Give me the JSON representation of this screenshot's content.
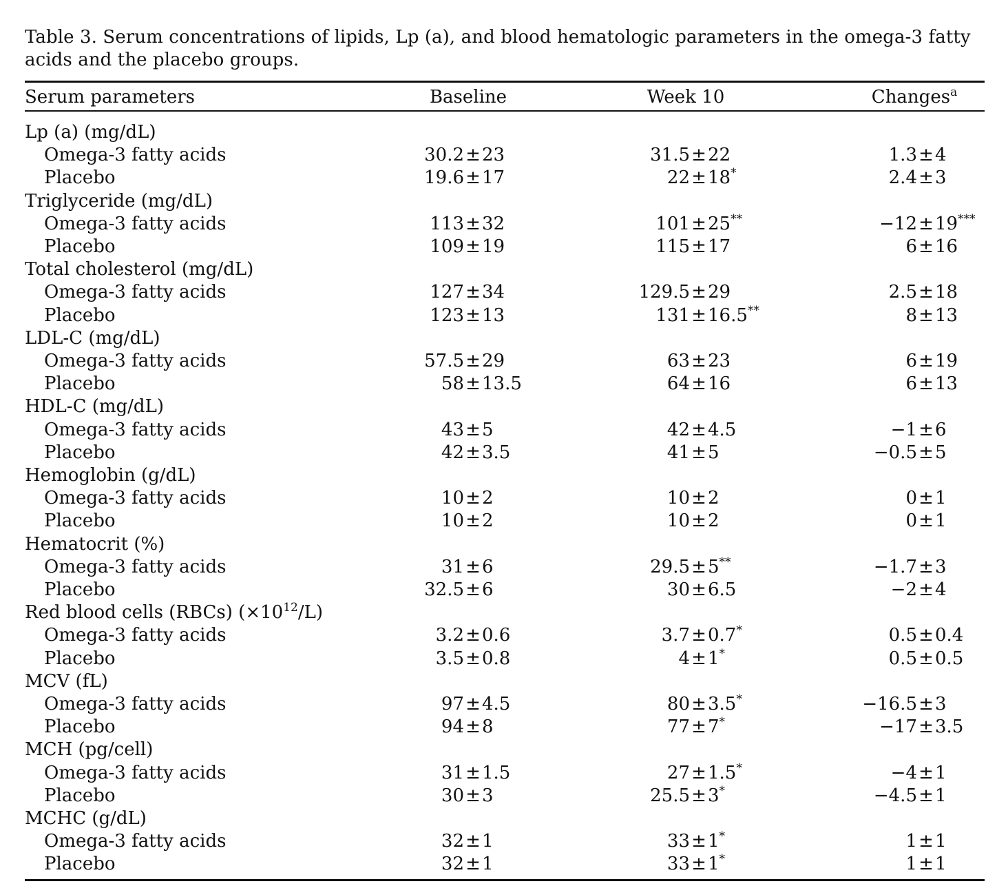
{
  "caption": "Table 3.  Serum concentrations of lipids, Lp (a), and blood hematologic parameters in the omega-3 fatty acids and the placebo groups.",
  "columns": {
    "param": "Serum parameters",
    "baseline": "Baseline",
    "week10": "Week 10",
    "changes": "Changes",
    "changes_sup": "a"
  },
  "pm": "±",
  "groups": [
    {
      "label": "Lp (a) (mg/dL)",
      "rows": [
        {
          "label": "Omega-3 fatty acids",
          "baseline": [
            "30.2",
            "23",
            ""
          ],
          "week10": [
            "31.5",
            "22",
            ""
          ],
          "changes": [
            "1.3",
            "4",
            ""
          ]
        },
        {
          "label": "Placebo",
          "baseline": [
            "19.6",
            "17",
            ""
          ],
          "week10": [
            "22",
            "18",
            "*"
          ],
          "changes": [
            "2.4",
            "3",
            ""
          ]
        }
      ]
    },
    {
      "label": "Triglyceride (mg/dL)",
      "rows": [
        {
          "label": "Omega-3 fatty acids",
          "baseline": [
            "113",
            "32",
            ""
          ],
          "week10": [
            "101",
            "25",
            "**"
          ],
          "changes": [
            "−12",
            "19",
            "***"
          ]
        },
        {
          "label": "Placebo",
          "baseline": [
            "109",
            "19",
            ""
          ],
          "week10": [
            "115",
            "17",
            ""
          ],
          "changes": [
            "6",
            "16",
            ""
          ]
        }
      ]
    },
    {
      "label": "Total cholesterol (mg/dL)",
      "rows": [
        {
          "label": "Omega-3 fatty acids",
          "baseline": [
            "127",
            "34",
            ""
          ],
          "week10": [
            "129.5",
            "29",
            ""
          ],
          "changes": [
            "2.5",
            "18",
            ""
          ]
        },
        {
          "label": "Placebo",
          "baseline": [
            "123",
            "13",
            ""
          ],
          "week10": [
            "131",
            "16.5",
            "**"
          ],
          "changes": [
            "8",
            "13",
            ""
          ]
        }
      ]
    },
    {
      "label": "LDL-C (mg/dL)",
      "rows": [
        {
          "label": "Omega-3 fatty acids",
          "baseline": [
            "57.5",
            "29",
            ""
          ],
          "week10": [
            "63",
            "23",
            ""
          ],
          "changes": [
            "6",
            "19",
            ""
          ]
        },
        {
          "label": "Placebo",
          "baseline": [
            "58",
            "13.5",
            ""
          ],
          "week10": [
            "64",
            "16",
            ""
          ],
          "changes": [
            "6",
            "13",
            ""
          ]
        }
      ]
    },
    {
      "label": "HDL-C (mg/dL)",
      "rows": [
        {
          "label": "Omega-3 fatty acids",
          "baseline": [
            "43",
            "5",
            ""
          ],
          "week10": [
            "42",
            "4.5",
            ""
          ],
          "changes": [
            "−1",
            "6",
            ""
          ]
        },
        {
          "label": "Placebo",
          "baseline": [
            "42",
            "3.5",
            ""
          ],
          "week10": [
            "41",
            "5",
            ""
          ],
          "changes": [
            "−0.5",
            "5",
            ""
          ]
        }
      ]
    },
    {
      "label": "Hemoglobin (g/dL)",
      "rows": [
        {
          "label": "Omega-3 fatty acids",
          "baseline": [
            "10",
            "2",
            ""
          ],
          "week10": [
            "10",
            "2",
            ""
          ],
          "changes": [
            "0",
            "1",
            ""
          ]
        },
        {
          "label": "Placebo",
          "baseline": [
            "10",
            "2",
            ""
          ],
          "week10": [
            "10",
            "2",
            ""
          ],
          "changes": [
            "0",
            "1",
            ""
          ]
        }
      ]
    },
    {
      "label": "Hematocrit (%)",
      "rows": [
        {
          "label": "Omega-3 fatty acids",
          "baseline": [
            "31",
            "6",
            ""
          ],
          "week10": [
            "29.5",
            "5",
            "**"
          ],
          "changes": [
            "−1.7",
            "3",
            ""
          ]
        },
        {
          "label": "Placebo",
          "baseline": [
            "32.5",
            "6",
            ""
          ],
          "week10": [
            "30",
            "6.5",
            ""
          ],
          "changes": [
            "−2",
            "4",
            ""
          ]
        }
      ]
    },
    {
      "label": "Red blood cells (RBCs) (×10",
      "label_sup": "12",
      "label_tail": "/L)",
      "rows": [
        {
          "label": "Omega-3 fatty acids",
          "baseline": [
            "3.2",
            "0.6",
            ""
          ],
          "week10": [
            "3.7",
            "0.7",
            "*"
          ],
          "changes": [
            "0.5",
            "0.4",
            ""
          ]
        },
        {
          "label": "Placebo",
          "baseline": [
            "3.5",
            "0.8",
            ""
          ],
          "week10": [
            "4",
            "1",
            "*"
          ],
          "changes": [
            "0.5",
            "0.5",
            ""
          ]
        }
      ]
    },
    {
      "label": "MCV (fL)",
      "rows": [
        {
          "label": "Omega-3 fatty acids",
          "baseline": [
            "97",
            "4.5",
            ""
          ],
          "week10": [
            "80",
            "3.5",
            "*"
          ],
          "changes": [
            "−16.5",
            "3",
            ""
          ]
        },
        {
          "label": "Placebo",
          "baseline": [
            "94",
            "8",
            ""
          ],
          "week10": [
            "77",
            "7",
            "*"
          ],
          "changes": [
            "−17",
            "3.5",
            ""
          ]
        }
      ]
    },
    {
      "label": "MCH (pg/cell)",
      "rows": [
        {
          "label": "Omega-3 fatty acids",
          "baseline": [
            "31",
            "1.5",
            ""
          ],
          "week10": [
            "27",
            "1.5",
            "*"
          ],
          "changes": [
            "−4",
            "1",
            ""
          ]
        },
        {
          "label": "Placebo",
          "baseline": [
            "30",
            "3",
            ""
          ],
          "week10": [
            "25.5",
            "3",
            "*"
          ],
          "changes": [
            "−4.5",
            "1",
            ""
          ]
        }
      ]
    },
    {
      "label": "MCHC (g/dL)",
      "rows": [
        {
          "label": "Omega-3 fatty acids",
          "baseline": [
            "32",
            "1",
            ""
          ],
          "week10": [
            "33",
            "1",
            "*"
          ],
          "changes": [
            "1",
            "1",
            ""
          ]
        },
        {
          "label": "Placebo",
          "baseline": [
            "32",
            "1",
            ""
          ],
          "week10": [
            "33",
            "1",
            "*"
          ],
          "changes": [
            "1",
            "1",
            ""
          ]
        }
      ]
    }
  ]
}
